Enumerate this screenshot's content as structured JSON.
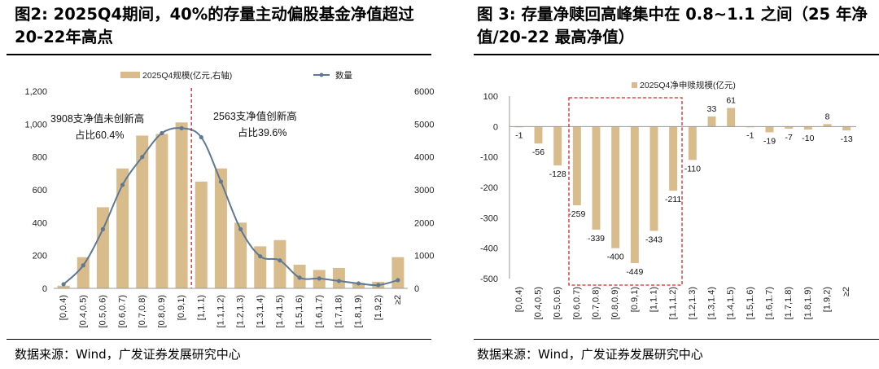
{
  "left": {
    "title": "图2: 2025Q4期间，40%的存量主动偏股基金净值超过20-22年高点",
    "source": "数据来源：Wind，广发证券发展研究中心",
    "legend": {
      "bar": "2025Q4规模(亿元,右轴)",
      "line": "数量"
    },
    "annotation_left": {
      "line1": "3908支净值未创新高",
      "line2": "占比60.4%"
    },
    "annotation_right": {
      "line1": "2563支净值创新高",
      "line2": "占比39.6%"
    },
    "bar_color": "#D9BC8C",
    "line_color": "#5F7893"
  },
  "right": {
    "title": "图 3: 存量净赎回高峰集中在 0.8~1.1 之间（25 年净值/20-22 最高净值）",
    "source": "数据来源：Wind，广发证券发展研究中心",
    "legend": {
      "bar": "2025Q4净申赎规模(亿元)"
    },
    "bar_color": "#D9BC8C",
    "highlight_color": "#D62728"
  },
  "chart_data": [
    {
      "type": "bar+line",
      "title": "图2: 2025Q4期间，40%的存量主动偏股基金净值超过20-22年高点",
      "categories": [
        "[0,0.4)",
        "[0.4,0.5)",
        "[0.5,0.6)",
        "[0.6,0.7)",
        "[0.7,0.8)",
        "[0.8,0.9)",
        "[0.9,1)",
        "[1,1.1)",
        "[1.1,1.2)",
        "[1.2,1.3)",
        "[1.3,1.4)",
        "[1.4,1.5)",
        "[1.5,1.6)",
        "[1.6,1.7)",
        "[1.7,1.8)",
        "[1.8,1.9)",
        "[1.9,2)",
        "≥2"
      ],
      "series": [
        {
          "name": "2025Q4规模(亿元,右轴)",
          "kind": "bar",
          "axis": "right",
          "values": [
            80,
            950,
            2470,
            3650,
            4650,
            4700,
            5050,
            3250,
            3650,
            2000,
            1280,
            1470,
            720,
            560,
            620,
            170,
            200,
            950
          ]
        },
        {
          "name": "数量",
          "kind": "line",
          "axis": "left",
          "values": [
            25,
            140,
            360,
            630,
            800,
            945,
            975,
            920,
            650,
            360,
            195,
            170,
            65,
            60,
            45,
            30,
            20,
            50
          ]
        }
      ],
      "yticks_left": [
        "0",
        "200",
        "400",
        "600",
        "800",
        "1,000",
        "1,200"
      ],
      "ylim_left": [
        0,
        1200
      ],
      "yticks_right": [
        "0",
        "1000",
        "2000",
        "3000",
        "4000",
        "5000",
        "6000"
      ],
      "ylim_right": [
        0,
        6000
      ],
      "divider_after_category": "[0.9,1)"
    },
    {
      "type": "bar",
      "title": "图 3: 存量净赎回高峰集中在 0.8~1.1 之间（25 年净值/20-22 最高净值）",
      "categories": [
        "[0,0.4)",
        "[0.4,0.5)",
        "[0.5,0.6)",
        "[0.6,0.7)",
        "[0.7,0.8)",
        "[0.8,0.9)",
        "[0.9,1)",
        "[1,1.1)",
        "[1.1,1.2)",
        "[1.2,1.3)",
        "[1.3,1.4)",
        "[1.4,1.5)",
        "[1.5,1.6)",
        "[1.6,1.7)",
        "[1.7,1.8)",
        "[1.8,1.9)",
        "[1.9,2)",
        "≥2"
      ],
      "series": [
        {
          "name": "2025Q4净申赎规模(亿元)",
          "values": [
            -1,
            -56,
            -128,
            -259,
            -339,
            -400,
            -449,
            -343,
            -211,
            -110,
            33,
            61,
            -1,
            -19,
            -7,
            -10,
            8,
            -13
          ]
        }
      ],
      "yticks": [
        "100",
        "0",
        "-100",
        "-200",
        "-300",
        "-400",
        "-500"
      ],
      "ylim": [
        -500,
        100
      ],
      "highlight_range": [
        "[0.6,0.7)",
        "[1.1,1.2)"
      ]
    }
  ]
}
